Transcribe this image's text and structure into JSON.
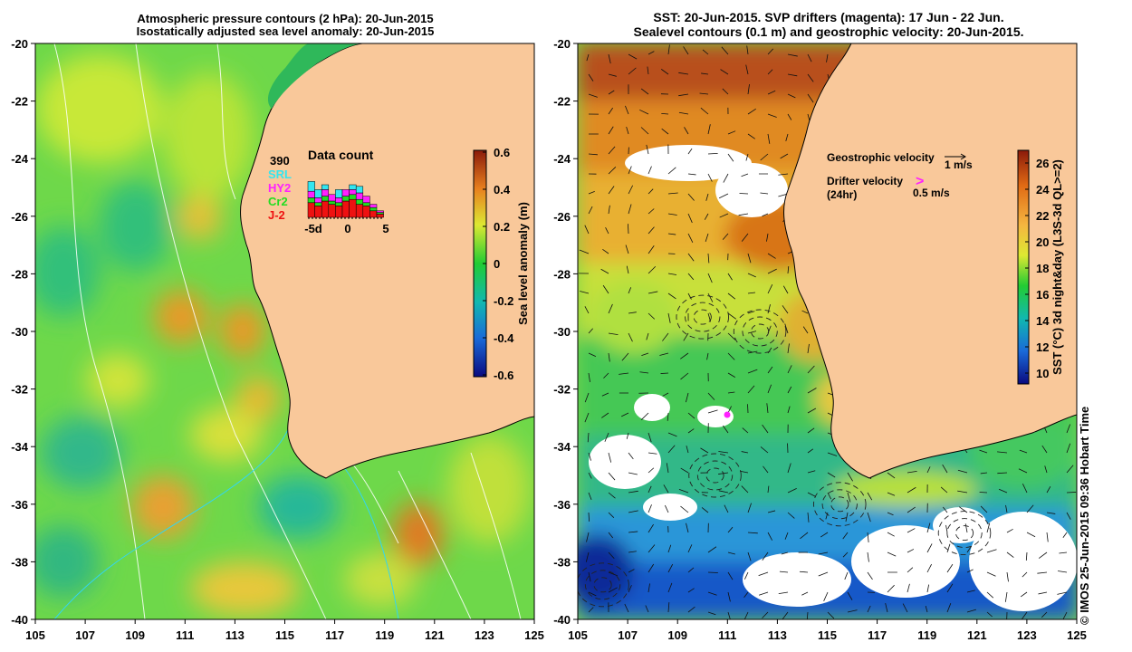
{
  "left_panel": {
    "title_line1": "Atmospheric pressure contours (2 hPa): 20-Jun-2015",
    "title_line2": "Isostatically adjusted sea level anomaly: 20-Jun-2015",
    "colorbar_label": "Sea level anomaly (m)",
    "colorbar_ticks": [
      "0.6",
      "0.4",
      "0.2",
      "0",
      "-0.2",
      "-0.4",
      "-0.6"
    ],
    "inset": {
      "title": "Data count",
      "total": "390",
      "legend": [
        {
          "name": "SRL",
          "color": "#33e6f0"
        },
        {
          "name": "HY2",
          "color": "#ff20ff"
        },
        {
          "name": "Cr2",
          "color": "#22dd22"
        },
        {
          "name": "J-2",
          "color": "#ee1111"
        }
      ],
      "x_ticks": [
        "-5d",
        "0",
        "5"
      ]
    }
  },
  "right_panel": {
    "title_line1": "SST: 20-Jun-2015. SVP drifters (magenta): 17 Jun - 22 Jun.",
    "title_line2": "Sealevel contours (0.1 m) and geostrophic velocity: 20-Jun-2015.",
    "colorbar_label": "SST (°C) 3d night&day (L3S-3d QL>=2)",
    "colorbar_ticks": [
      "26",
      "24",
      "22",
      "20",
      "18",
      "16",
      "14",
      "12",
      "10"
    ],
    "legend_geo": "Geostrophic velocity",
    "legend_geo_value": "1 m/s",
    "legend_drifter": "Drifter velocity",
    "legend_drifter_sub": "(24hr)",
    "legend_drifter_value": "0.5 m/s",
    "legend_drifter_marker": ">"
  },
  "credit": "© IMOS 25-Jun-2015 09:36 Hobart Time",
  "chart_data": [
    {
      "type": "heatmap",
      "title": "Atmospheric pressure contours (2 hPa): 20-Jun-2015 / Isostatically adjusted sea level anomaly: 20-Jun-2015",
      "xlabel": "",
      "ylabel": "",
      "xlim": [
        105,
        125
      ],
      "ylim": [
        -40,
        -20
      ],
      "x_ticks": [
        "105",
        "107",
        "109",
        "111",
        "113",
        "115",
        "117",
        "119",
        "121",
        "123",
        "125"
      ],
      "y_ticks": [
        "-20",
        "-22",
        "-24",
        "-26",
        "-28",
        "-30",
        "-32",
        "-34",
        "-36",
        "-38",
        "-40"
      ],
      "colorbar": {
        "label": "Sea level anomaly (m)",
        "min": -0.6,
        "max": 0.6
      },
      "highs": [
        {
          "lon": 110.5,
          "lat": -29.5,
          "value": 0.35
        },
        {
          "lon": 113.2,
          "lat": -30.0,
          "value": 0.32
        },
        {
          "lon": 110.2,
          "lat": -36.2,
          "value": 0.3
        },
        {
          "lon": 120.3,
          "lat": -37.0,
          "value": 0.4
        },
        {
          "lon": 111.8,
          "lat": -25.8,
          "value": 0.25
        }
      ],
      "lows": [
        {
          "lon": 106.5,
          "lat": -27.8,
          "value": -0.1
        },
        {
          "lon": 106.0,
          "lat": -34.5,
          "value": -0.12
        },
        {
          "lon": 115.7,
          "lat": -35.9,
          "value": -0.15
        },
        {
          "lon": 107.0,
          "lat": -38.5,
          "value": -0.1
        }
      ],
      "inset_histogram": {
        "categories": [
          "-5",
          "-4",
          "-3",
          "-2",
          "-1",
          "0",
          "1",
          "2",
          "3",
          "4",
          "5"
        ],
        "series": [
          {
            "name": "J-2",
            "values": [
              18,
              14,
              20,
              16,
              14,
              20,
              22,
              16,
              14,
              8,
              4
            ]
          },
          {
            "name": "Cr2",
            "values": [
              6,
              4,
              6,
              4,
              4,
              6,
              6,
              6,
              4,
              4,
              2
            ]
          },
          {
            "name": "HY2",
            "values": [
              8,
              6,
              8,
              8,
              6,
              8,
              6,
              8,
              8,
              4,
              2
            ]
          },
          {
            "name": "SRL",
            "values": [
              12,
              10,
              6,
              0,
              10,
              0,
              6,
              8,
              0,
              0,
              0
            ]
          }
        ],
        "total": 390
      }
    },
    {
      "type": "heatmap",
      "title": "SST: 20-Jun-2015. SVP drifters (magenta): 17 Jun - 22 Jun. / Sealevel contours (0.1 m) and geostrophic velocity: 20-Jun-2015.",
      "xlabel": "",
      "ylabel": "",
      "xlim": [
        105,
        125
      ],
      "ylim": [
        -40,
        -20
      ],
      "x_ticks": [
        "105",
        "107",
        "109",
        "111",
        "113",
        "115",
        "117",
        "119",
        "121",
        "123",
        "125"
      ],
      "y_ticks": [
        "-20",
        "-22",
        "-24",
        "-26",
        "-28",
        "-30",
        "-32",
        "-34",
        "-36",
        "-38",
        "-40"
      ],
      "colorbar": {
        "label": "SST (°C) 3d night&day (L3S-3d QL>=2)",
        "min": 10,
        "max": 27
      },
      "eddies": [
        {
          "lon": 110.0,
          "lat": -29.5
        },
        {
          "lon": 112.3,
          "lat": -30.0
        },
        {
          "lon": 110.5,
          "lat": -35.0
        },
        {
          "lon": 115.5,
          "lat": -36.0
        },
        {
          "lon": 120.5,
          "lat": -37.0
        },
        {
          "lon": 106.0,
          "lat": -38.8
        }
      ],
      "drifters": [
        {
          "lon": 111.0,
          "lat": -32.8
        }
      ]
    }
  ]
}
